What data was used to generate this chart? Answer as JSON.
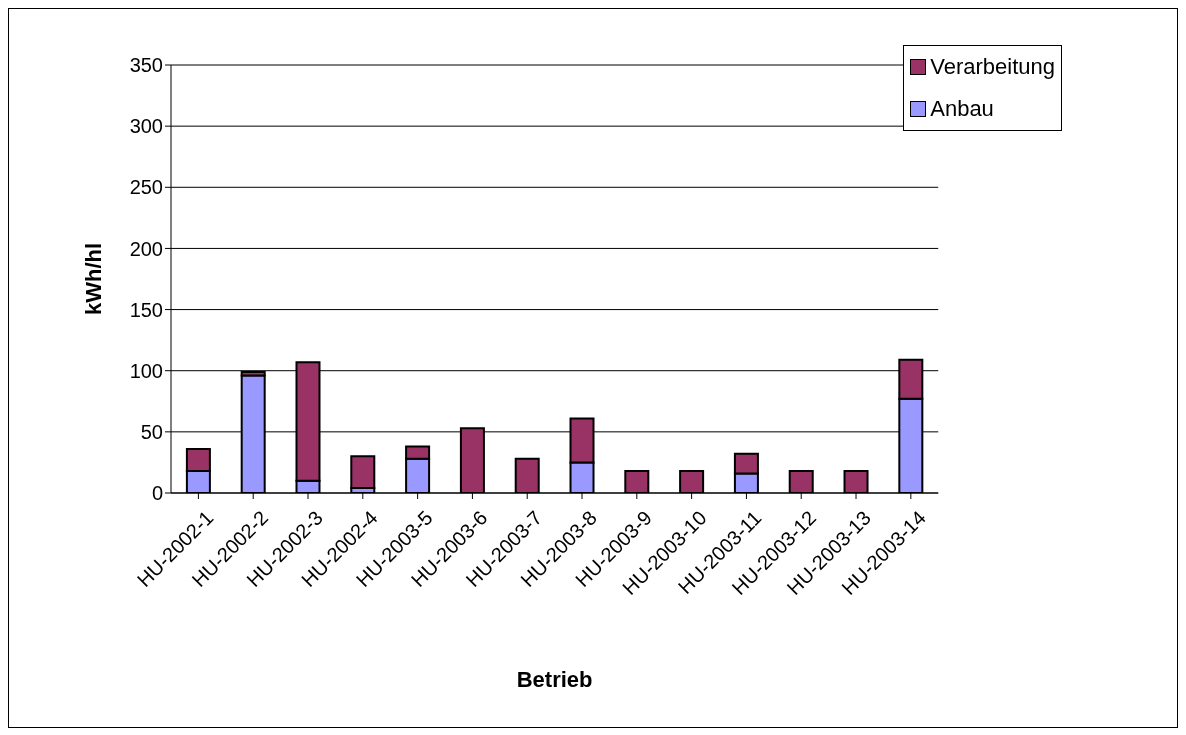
{
  "chart_data": {
    "type": "bar",
    "stacked": true,
    "xlabel": "Betrieb",
    "ylabel": "kWh/hl",
    "categories": [
      "HU-2002-1",
      "HU-2002-2",
      "HU-2002-3",
      "HU-2002-4",
      "HU-2003-5",
      "HU-2003-6",
      "HU-2003-7",
      "HU-2003-8",
      "HU-2003-9",
      "HU-2003-10",
      "HU-2003-11",
      "HU-2003-12",
      "HU-2003-13",
      "HU-2003-14"
    ],
    "series": [
      {
        "name": "Anbau",
        "color": "#9999ff",
        "values": [
          18,
          96,
          10,
          4,
          28,
          0,
          null,
          25,
          0,
          null,
          16,
          0,
          null,
          77
        ]
      },
      {
        "name": "Verarbeitung",
        "color": "#993366",
        "values": [
          18,
          3,
          97,
          26,
          10,
          53,
          28,
          36,
          18,
          18,
          16,
          18,
          18,
          32
        ]
      }
    ],
    "ylim": [
      0,
      350
    ],
    "yticks": [
      0,
      50,
      100,
      150,
      200,
      250,
      300,
      350
    ],
    "grid": "y",
    "legend": "top right"
  }
}
